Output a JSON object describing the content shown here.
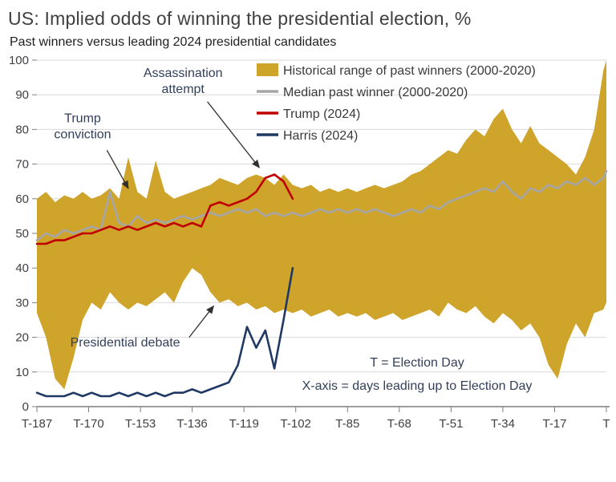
{
  "colors": {
    "gold": "#CFA42B",
    "gray": "#A6A6A6",
    "red": "#C00000",
    "blue": "#1F3864",
    "grid": "#D9D9D9",
    "axis": "#7F7F7F",
    "arrow": "#303030"
  },
  "chart_data": {
    "type": "area",
    "title": "US: Implied odds of winning the presidential election, %",
    "subtitle": "Past winners versus leading 2024 presidential candidates",
    "x_unit": "days before Election Day",
    "ylim": [
      0,
      100
    ],
    "y_ticks": [
      0,
      10,
      20,
      30,
      40,
      50,
      60,
      70,
      80,
      90,
      100
    ],
    "x_ticks": [
      {
        "day": 187,
        "label": "T-187"
      },
      {
        "day": 170,
        "label": "T-170"
      },
      {
        "day": 153,
        "label": "T-153"
      },
      {
        "day": 136,
        "label": "T-136"
      },
      {
        "day": 119,
        "label": "T-119"
      },
      {
        "day": 102,
        "label": "T-102"
      },
      {
        "day": 85,
        "label": "T-85"
      },
      {
        "day": 68,
        "label": "T-68"
      },
      {
        "day": 51,
        "label": "T-51"
      },
      {
        "day": 34,
        "label": "T-34"
      },
      {
        "day": 17,
        "label": "T-17"
      },
      {
        "day": 0,
        "label": "T"
      }
    ],
    "x": [
      187,
      184,
      181,
      178,
      175,
      172,
      169,
      166,
      163,
      160,
      157,
      154,
      151,
      148,
      145,
      142,
      139,
      136,
      133,
      130,
      127,
      124,
      121,
      118,
      115,
      112,
      109,
      106,
      103,
      100,
      97,
      94,
      91,
      88,
      85,
      82,
      79,
      76,
      73,
      70,
      67,
      64,
      61,
      58,
      55,
      52,
      49,
      46,
      43,
      40,
      37,
      34,
      31,
      28,
      25,
      22,
      19,
      16,
      13,
      10,
      7,
      4,
      1,
      0
    ],
    "series": [
      {
        "name": "Historical range of past winners (2000-2020)",
        "type": "band",
        "color": "gold",
        "upper": [
          60,
          62,
          59,
          61,
          60,
          62,
          60,
          61,
          63,
          60,
          72,
          62,
          60,
          71,
          62,
          60,
          61,
          62,
          63,
          64,
          66,
          65,
          64,
          66,
          67,
          66,
          64,
          67,
          64,
          63,
          64,
          62,
          63,
          62,
          63,
          62,
          63,
          64,
          63,
          64,
          65,
          67,
          68,
          70,
          72,
          74,
          73,
          77,
          80,
          78,
          83,
          86,
          80,
          76,
          81,
          76,
          74,
          72,
          70,
          67,
          72,
          80,
          97,
          100
        ],
        "lower": [
          27,
          20,
          8,
          5,
          14,
          25,
          30,
          28,
          33,
          30,
          28,
          30,
          29,
          31,
          33,
          30,
          36,
          40,
          38,
          33,
          30,
          31,
          29,
          30,
          28,
          29,
          27,
          28,
          27,
          28,
          26,
          27,
          28,
          26,
          27,
          26,
          27,
          25,
          26,
          27,
          25,
          26,
          27,
          28,
          26,
          30,
          28,
          27,
          29,
          26,
          24,
          27,
          25,
          22,
          24,
          20,
          12,
          8,
          18,
          24,
          20,
          27,
          28,
          30
        ]
      },
      {
        "name": "Median past winner (2000-2020)",
        "type": "line",
        "color": "gray",
        "values": [
          48,
          50,
          49,
          51,
          50,
          51,
          52,
          51,
          62,
          53,
          52,
          55,
          53,
          54,
          53,
          54,
          55,
          54,
          55,
          56,
          55,
          56,
          57,
          56,
          57,
          55,
          56,
          55,
          56,
          55,
          56,
          57,
          56,
          57,
          56,
          57,
          56,
          57,
          56,
          55,
          56,
          57,
          56,
          58,
          57,
          59,
          60,
          61,
          62,
          63,
          62,
          65,
          62,
          60,
          63,
          62,
          64,
          63,
          65,
          64,
          66,
          64,
          66,
          68
        ]
      },
      {
        "name": "Trump (2024)",
        "type": "line",
        "color": "red",
        "values": [
          47,
          47,
          48,
          48,
          49,
          50,
          50,
          51,
          52,
          51,
          52,
          51,
          52,
          53,
          52,
          53,
          52,
          53,
          52,
          58,
          59,
          58,
          59,
          60,
          62,
          66,
          67,
          65,
          60,
          null,
          null,
          null,
          null,
          null,
          null,
          null,
          null,
          null,
          null,
          null,
          null,
          null,
          null,
          null,
          null,
          null,
          null,
          null,
          null,
          null,
          null,
          null,
          null,
          null,
          null,
          null,
          null,
          null,
          null,
          null,
          null,
          null,
          null,
          null
        ]
      },
      {
        "name": "Harris (2024)",
        "type": "line",
        "color": "blue",
        "values": [
          4,
          3,
          3,
          3,
          4,
          3,
          4,
          3,
          3,
          4,
          3,
          4,
          3,
          4,
          3,
          4,
          4,
          5,
          4,
          5,
          6,
          7,
          12,
          23,
          17,
          22,
          11,
          25,
          40,
          null,
          null,
          null,
          null,
          null,
          null,
          null,
          null,
          null,
          null,
          null,
          null,
          null,
          null,
          null,
          null,
          null,
          null,
          null,
          null,
          null,
          null,
          null,
          null,
          null,
          null,
          null,
          null,
          null,
          null,
          null,
          null,
          null,
          null,
          null
        ]
      }
    ],
    "annotations": [
      {
        "id": "trump-conviction",
        "lines": [
          "Trump",
          "conviction"
        ],
        "label_day": 172,
        "label_val": 80,
        "arrow": {
          "from_day": 164,
          "from_val": 74,
          "to_day": 157,
          "to_val": 63
        }
      },
      {
        "id": "assassination-attempt",
        "lines": [
          "Assassination",
          "attempt"
        ],
        "label_day": 139,
        "label_val": 93,
        "arrow": {
          "from_day": 131,
          "from_val": 88,
          "to_day": 114,
          "to_val": 69
        }
      },
      {
        "id": "presidential-debate",
        "lines": [
          "Presidential debate"
        ],
        "label_day": 158,
        "label_val": 18.5,
        "arrow": {
          "from_day": 137,
          "from_val": 20,
          "to_day": 129,
          "to_val": 29
        }
      }
    ],
    "note_lines": [
      "T = Election Day",
      "X-axis = days leading up to Election Day"
    ],
    "legend_position": "top-inside"
  }
}
